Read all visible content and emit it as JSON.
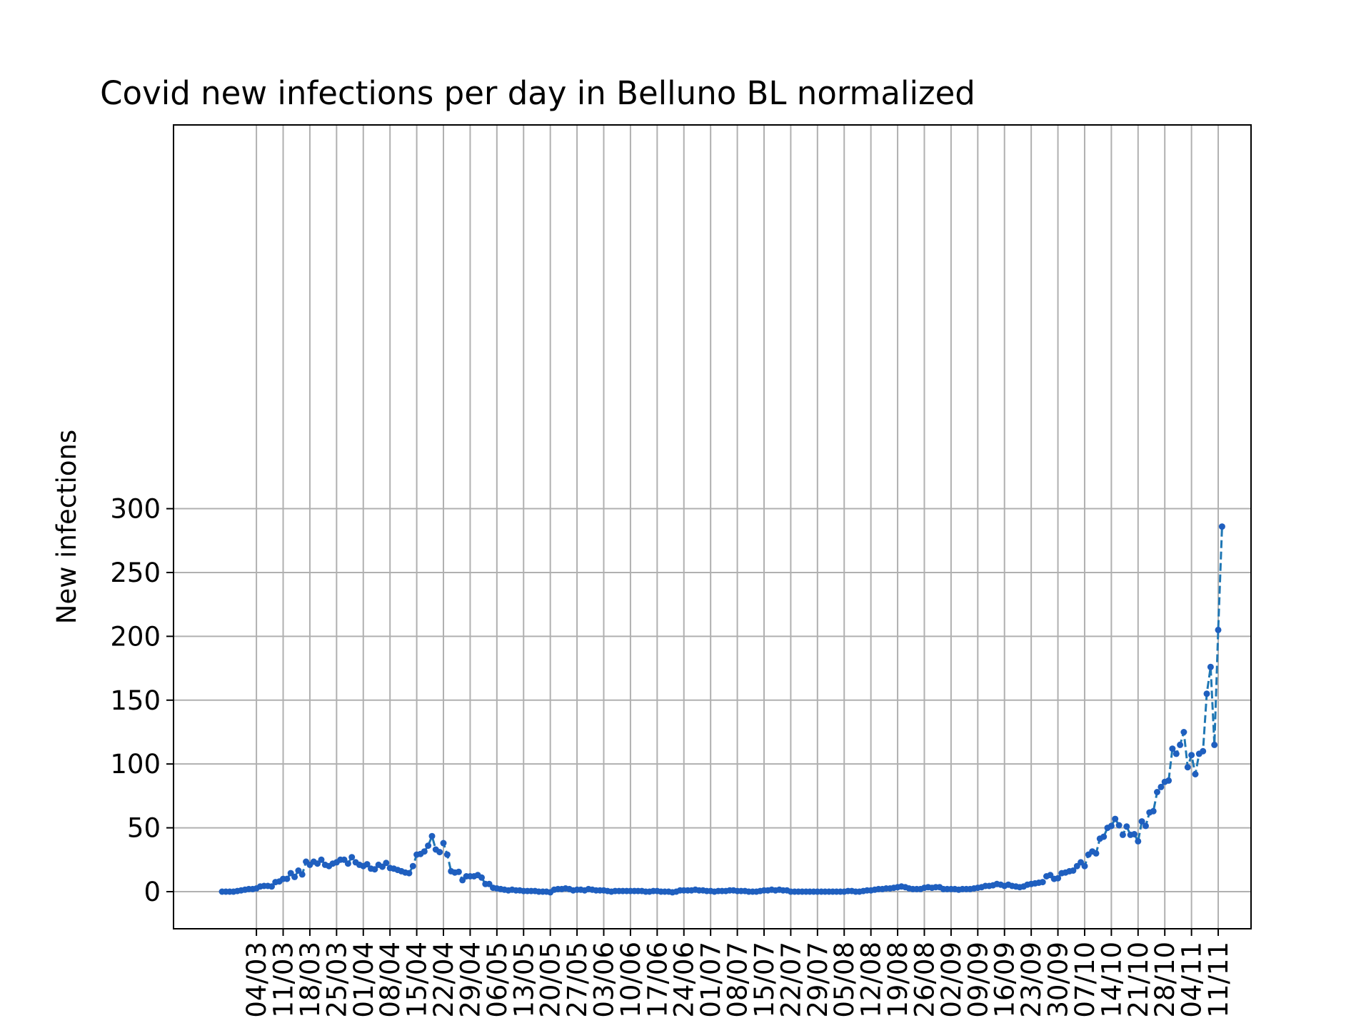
{
  "chart_data": {
    "type": "line",
    "title": "Covid new infections per day in Belluno BL normalized",
    "xlabel": "",
    "ylabel": "New infections",
    "ylim": [
      -14.5,
      300
    ],
    "yticks": [
      0,
      50,
      100,
      150,
      200,
      250,
      300
    ],
    "xticks": [
      "04/03",
      "11/03",
      "18/03",
      "25/03",
      "01/04",
      "08/04",
      "15/04",
      "22/04",
      "29/04",
      "06/05",
      "13/05",
      "20/05",
      "27/05",
      "03/06",
      "10/06",
      "17/06",
      "24/06",
      "01/07",
      "08/07",
      "15/07",
      "22/07",
      "29/07",
      "05/08",
      "12/08",
      "19/08",
      "26/08",
      "02/09",
      "09/09",
      "16/09",
      "23/09",
      "30/09",
      "07/10",
      "14/10",
      "21/10",
      "28/10",
      "04/11",
      "11/11"
    ],
    "x_start": "24/02",
    "x_end": "11/11",
    "grid": true,
    "series": [
      {
        "color": "#1f77b4",
        "marker_color": "#1f5fbf",
        "line_style": "dashed",
        "marker": "dot",
        "values": [
          0,
          0,
          0,
          0,
          0.5,
          1,
          1.5,
          2,
          2,
          2.5,
          4,
          4.5,
          4.5,
          4,
          7.5,
          8,
          10,
          10,
          14.5,
          11.5,
          16.5,
          13.5,
          23.5,
          21,
          23.5,
          22,
          25,
          21,
          20,
          22,
          23,
          25,
          25,
          22,
          27,
          23,
          21,
          20,
          21.5,
          18,
          17.5,
          21,
          19.5,
          22.5,
          18.5,
          18,
          17,
          16,
          15,
          14.5,
          20,
          29,
          29.5,
          31.5,
          36,
          43.5,
          33,
          31,
          38,
          29,
          16,
          15,
          15.5,
          9,
          12,
          12,
          12,
          13,
          11,
          6,
          6,
          3,
          2.5,
          2,
          1.5,
          1,
          1.5,
          1,
          1,
          0.5,
          0.5,
          0.5,
          0.5,
          0,
          0,
          0,
          -0.5,
          1.5,
          2,
          2,
          2.5,
          2,
          1,
          1.5,
          1.5,
          1,
          2,
          1.5,
          1,
          1,
          1,
          0.5,
          0,
          0.5,
          0.5,
          0.5,
          0.5,
          0.5,
          0.5,
          0.5,
          0.5,
          0,
          0,
          0.5,
          0.5,
          0,
          0,
          0,
          -0.5,
          0,
          1,
          1,
          1,
          1,
          1.5,
          1,
          1,
          0.5,
          0.5,
          0,
          0.5,
          0.5,
          0.5,
          1,
          1,
          0.5,
          0.5,
          0.5,
          0,
          0,
          0,
          0.5,
          1,
          1,
          1.5,
          1,
          1.5,
          1,
          1,
          0,
          0,
          0,
          0,
          0,
          0,
          0,
          0,
          0,
          0,
          0,
          0,
          0,
          0,
          0,
          0.5,
          0.5,
          0,
          0,
          0.5,
          1,
          1,
          1.5,
          2,
          2,
          2.5,
          2.5,
          3,
          3.5,
          4,
          3.5,
          2.5,
          2,
          2,
          2,
          3,
          3.5,
          3,
          3.5,
          3.5,
          2,
          2,
          2,
          2,
          1.5,
          2,
          2,
          2,
          2.5,
          3,
          3.5,
          4.5,
          4.5,
          5,
          6,
          5.5,
          4.5,
          5.5,
          4.5,
          4,
          3.5,
          4,
          5.5,
          6,
          6.5,
          7,
          7.5,
          12,
          13,
          10,
          10.5,
          14.5,
          15,
          16,
          16.5,
          20,
          23,
          20,
          29,
          31.5,
          30,
          41.5,
          43,
          50,
          51.5,
          57,
          52,
          44.5,
          51,
          44.5,
          45,
          39.5,
          55,
          51.5,
          62,
          63,
          78,
          82,
          86,
          87,
          112,
          108,
          115,
          125,
          97.5,
          107,
          92,
          108,
          110,
          155,
          176,
          115,
          205,
          286
        ]
      }
    ]
  }
}
